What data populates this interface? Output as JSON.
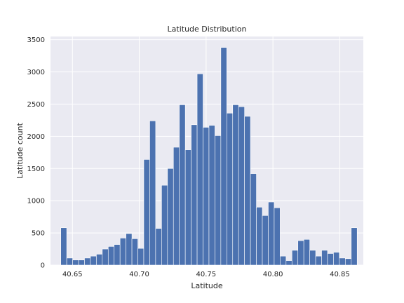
{
  "chart_data": {
    "type": "bar",
    "title": "Latitude Distribution",
    "xlabel": "Latitude",
    "ylabel": "Latitude count",
    "xlim": [
      40.6336,
      40.8676
    ],
    "ylim": [
      0,
      3550
    ],
    "xticks": [
      40.65,
      40.7,
      40.75,
      40.8,
      40.85
    ],
    "xtick_labels": [
      "40.65",
      "40.70",
      "40.75",
      "40.80",
      "40.85"
    ],
    "yticks": [
      0,
      500,
      1000,
      1500,
      2000,
      2500,
      3000,
      3500
    ],
    "ytick_labels": [
      "0",
      "500",
      "1000",
      "1500",
      "2000",
      "2500",
      "3000",
      "3500"
    ],
    "grid": true,
    "bins": {
      "start": 40.6413,
      "end": 40.863,
      "values": [
        580,
        110,
        80,
        80,
        110,
        140,
        170,
        250,
        290,
        320,
        420,
        490,
        410,
        260,
        1640,
        2240,
        570,
        1240,
        1500,
        1830,
        2490,
        1790,
        2180,
        2970,
        2140,
        2170,
        2010,
        3380,
        2360,
        2490,
        2460,
        2310,
        1420,
        900,
        770,
        980,
        890,
        140,
        70,
        230,
        380,
        400,
        230,
        140,
        230,
        180,
        200,
        110,
        100,
        580
      ]
    },
    "colors": {
      "bar": "#4c72b0",
      "plot_background": "#eaeaf2",
      "grid": "#ffffff"
    }
  }
}
